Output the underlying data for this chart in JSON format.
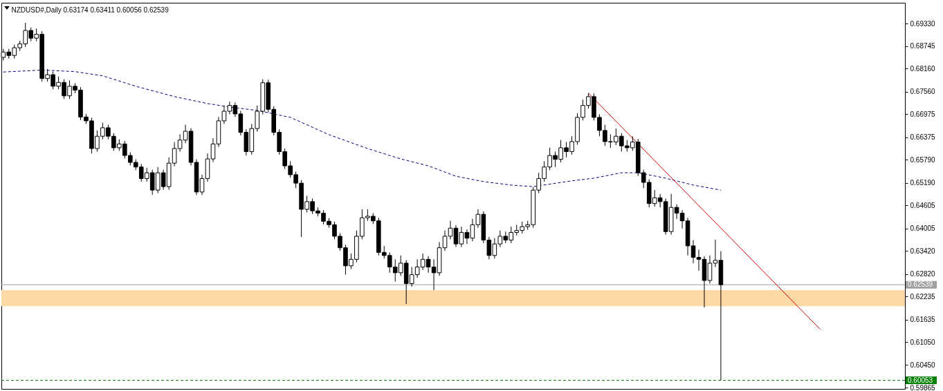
{
  "chart_data": {
    "type": "candlestick",
    "title": "NZDUSD#,Daily  0.63174 0.63411 0.60056 0.62539",
    "categories": [
      null,
      null,
      null,
      null,
      null,
      null,
      null,
      null,
      null,
      null,
      null,
      null,
      null,
      null,
      null,
      null,
      null,
      null,
      null,
      null,
      null,
      null,
      null,
      null,
      null,
      null,
      null,
      null,
      null,
      null,
      null,
      null,
      null,
      null,
      null,
      null,
      null,
      null,
      null,
      null,
      null,
      null,
      null,
      null,
      null,
      null,
      null,
      null,
      null,
      null,
      null,
      null,
      null,
      null,
      null,
      null,
      null,
      null,
      null,
      null,
      null,
      null,
      null,
      null,
      null,
      null,
      null,
      null,
      null,
      null,
      null,
      null,
      null,
      null,
      null,
      null,
      null,
      null,
      null,
      null,
      null,
      null,
      null,
      null,
      null,
      null,
      null,
      null,
      null,
      null,
      null,
      null,
      null,
      null,
      null,
      null,
      null,
      null,
      null,
      null,
      null,
      null,
      null,
      null,
      null,
      null,
      null,
      null,
      null,
      null,
      null,
      null,
      null,
      null,
      null,
      null,
      null,
      null,
      null,
      null,
      null,
      null,
      null,
      null,
      null,
      null,
      null,
      null,
      null,
      null,
      null,
      null,
      null,
      null,
      null,
      null,
      null,
      null,
      null,
      null,
      null,
      null,
      null,
      null,
      null,
      null,
      null,
      null,
      null,
      null,
      null,
      null,
      null,
      null,
      null,
      null,
      null,
      null,
      null,
      null,
      null,
      null,
      null,
      null
    ],
    "ohlc": [
      [
        0.6845,
        0.6867,
        0.6837,
        0.6859
      ],
      [
        0.6859,
        0.6867,
        0.6842,
        0.685
      ],
      [
        0.685,
        0.6878,
        0.6842,
        0.687
      ],
      [
        0.687,
        0.6888,
        0.6862,
        0.688
      ],
      [
        0.688,
        0.6935,
        0.6872,
        0.6915
      ],
      [
        0.6915,
        0.6923,
        0.6887,
        0.6895
      ],
      [
        0.6895,
        0.692,
        0.6887,
        0.6905
      ],
      [
        0.6905,
        0.6913,
        0.6782,
        0.679
      ],
      [
        0.679,
        0.6815,
        0.6782,
        0.68
      ],
      [
        0.68,
        0.6808,
        0.6762,
        0.677
      ],
      [
        0.677,
        0.6795,
        0.6762,
        0.678
      ],
      [
        0.678,
        0.6788,
        0.6737,
        0.6745
      ],
      [
        0.6745,
        0.6785,
        0.6737,
        0.677
      ],
      [
        0.677,
        0.6778,
        0.6752,
        0.676
      ],
      [
        0.676,
        0.6768,
        0.6682,
        0.669
      ],
      [
        0.669,
        0.6698,
        0.6672,
        0.668
      ],
      [
        0.668,
        0.6688,
        0.6595,
        0.6608
      ],
      [
        0.6608,
        0.6655,
        0.66,
        0.664
      ],
      [
        0.664,
        0.6675,
        0.6632,
        0.6662
      ],
      [
        0.6662,
        0.667,
        0.6632,
        0.664
      ],
      [
        0.664,
        0.6648,
        0.6602,
        0.661
      ],
      [
        0.661,
        0.6632,
        0.6602,
        0.662
      ],
      [
        0.662,
        0.6628,
        0.6582,
        0.659
      ],
      [
        0.659,
        0.6598,
        0.6564,
        0.6572
      ],
      [
        0.6572,
        0.658,
        0.6552,
        0.656
      ],
      [
        0.656,
        0.6568,
        0.6522,
        0.653
      ],
      [
        0.653,
        0.6558,
        0.6522,
        0.6545
      ],
      [
        0.6545,
        0.6553,
        0.6488,
        0.65
      ],
      [
        0.65,
        0.656,
        0.6492,
        0.6545
      ],
      [
        0.6545,
        0.6553,
        0.6501,
        0.6509
      ],
      [
        0.6509,
        0.6585,
        0.6501,
        0.657
      ],
      [
        0.657,
        0.6625,
        0.6562,
        0.6608
      ],
      [
        0.6608,
        0.6645,
        0.66,
        0.663
      ],
      [
        0.663,
        0.667,
        0.6622,
        0.6653
      ],
      [
        0.6653,
        0.6661,
        0.6564,
        0.6572
      ],
      [
        0.6572,
        0.658,
        0.6487,
        0.6495
      ],
      [
        0.6495,
        0.654,
        0.6487,
        0.653
      ],
      [
        0.653,
        0.6595,
        0.6522,
        0.6581
      ],
      [
        0.6581,
        0.6635,
        0.6573,
        0.662
      ],
      [
        0.662,
        0.669,
        0.6612,
        0.668
      ],
      [
        0.668,
        0.672,
        0.6672,
        0.6705
      ],
      [
        0.6705,
        0.673,
        0.6697,
        0.672
      ],
      [
        0.672,
        0.6728,
        0.669,
        0.6698
      ],
      [
        0.6698,
        0.6706,
        0.6642,
        0.665
      ],
      [
        0.665,
        0.6658,
        0.659,
        0.66
      ],
      [
        0.66,
        0.6672,
        0.6592,
        0.666
      ],
      [
        0.666,
        0.672,
        0.6652,
        0.6705
      ],
      [
        0.6705,
        0.6788,
        0.6697,
        0.6779
      ],
      [
        0.6779,
        0.6787,
        0.6702,
        0.671
      ],
      [
        0.671,
        0.6718,
        0.6642,
        0.665
      ],
      [
        0.665,
        0.6658,
        0.6592,
        0.66
      ],
      [
        0.66,
        0.6608,
        0.6555,
        0.6563
      ],
      [
        0.6563,
        0.6575,
        0.6532,
        0.654
      ],
      [
        0.654,
        0.6548,
        0.6505,
        0.6518
      ],
      [
        0.6518,
        0.6526,
        0.6378,
        0.645
      ],
      [
        0.645,
        0.6485,
        0.6442,
        0.647
      ],
      [
        0.647,
        0.6478,
        0.6438,
        0.6446
      ],
      [
        0.6446,
        0.6455,
        0.6432,
        0.644
      ],
      [
        0.644,
        0.6448,
        0.6411,
        0.6419
      ],
      [
        0.6419,
        0.6427,
        0.6402,
        0.641
      ],
      [
        0.641,
        0.6418,
        0.6372,
        0.638
      ],
      [
        0.638,
        0.6388,
        0.6342,
        0.635
      ],
      [
        0.635,
        0.6358,
        0.628,
        0.6303
      ],
      [
        0.6303,
        0.6335,
        0.6295,
        0.632
      ],
      [
        0.632,
        0.6395,
        0.6312,
        0.638
      ],
      [
        0.638,
        0.645,
        0.6372,
        0.6428
      ],
      [
        0.6428,
        0.645,
        0.642,
        0.6432
      ],
      [
        0.6432,
        0.644,
        0.6412,
        0.642
      ],
      [
        0.642,
        0.6428,
        0.633,
        0.6338
      ],
      [
        0.6338,
        0.6355,
        0.6322,
        0.633
      ],
      [
        0.633,
        0.6338,
        0.6285,
        0.63
      ],
      [
        0.63,
        0.632,
        0.6262,
        0.6285
      ],
      [
        0.6285,
        0.633,
        0.6277,
        0.631
      ],
      [
        0.631,
        0.6318,
        0.6204,
        0.6257
      ],
      [
        0.6257,
        0.63,
        0.6249,
        0.628
      ],
      [
        0.628,
        0.632,
        0.6272,
        0.63
      ],
      [
        0.63,
        0.6335,
        0.6292,
        0.632
      ],
      [
        0.632,
        0.6328,
        0.6285,
        0.63
      ],
      [
        0.63,
        0.632,
        0.624,
        0.6285
      ],
      [
        0.6285,
        0.6365,
        0.6277,
        0.635
      ],
      [
        0.635,
        0.6395,
        0.6342,
        0.638
      ],
      [
        0.638,
        0.642,
        0.6372,
        0.6401
      ],
      [
        0.6401,
        0.6409,
        0.6352,
        0.636
      ],
      [
        0.636,
        0.6405,
        0.6352,
        0.639
      ],
      [
        0.639,
        0.6398,
        0.636,
        0.6375
      ],
      [
        0.6375,
        0.6425,
        0.6367,
        0.641
      ],
      [
        0.641,
        0.645,
        0.6402,
        0.6437
      ],
      [
        0.6437,
        0.6445,
        0.6362,
        0.637
      ],
      [
        0.637,
        0.6378,
        0.632,
        0.633
      ],
      [
        0.633,
        0.6375,
        0.6322,
        0.636
      ],
      [
        0.636,
        0.6395,
        0.6352,
        0.638
      ],
      [
        0.638,
        0.6392,
        0.6362,
        0.637
      ],
      [
        0.637,
        0.6405,
        0.6362,
        0.639
      ],
      [
        0.639,
        0.641,
        0.6382,
        0.6395
      ],
      [
        0.6395,
        0.6418,
        0.6387,
        0.6405
      ],
      [
        0.6405,
        0.642,
        0.6397,
        0.641
      ],
      [
        0.641,
        0.6508,
        0.6402,
        0.65
      ],
      [
        0.65,
        0.6545,
        0.6492,
        0.653
      ],
      [
        0.653,
        0.6575,
        0.6522,
        0.656
      ],
      [
        0.656,
        0.661,
        0.6552,
        0.659
      ],
      [
        0.659,
        0.66,
        0.656,
        0.658
      ],
      [
        0.658,
        0.663,
        0.6572,
        0.661
      ],
      [
        0.661,
        0.6625,
        0.6585,
        0.66
      ],
      [
        0.66,
        0.664,
        0.6592,
        0.6626
      ],
      [
        0.6626,
        0.67,
        0.6618,
        0.6689
      ],
      [
        0.6689,
        0.6735,
        0.6681,
        0.672
      ],
      [
        0.672,
        0.6752,
        0.6712,
        0.6743
      ],
      [
        0.6743,
        0.6751,
        0.6681,
        0.6689
      ],
      [
        0.6689,
        0.6697,
        0.664,
        0.6655
      ],
      [
        0.6655,
        0.667,
        0.6615,
        0.6626
      ],
      [
        0.6626,
        0.6645,
        0.661,
        0.6625
      ],
      [
        0.6625,
        0.666,
        0.6617,
        0.664
      ],
      [
        0.664,
        0.6648,
        0.66,
        0.6615
      ],
      [
        0.6615,
        0.663,
        0.66,
        0.661
      ],
      [
        0.661,
        0.664,
        0.6602,
        0.6625
      ],
      [
        0.6625,
        0.6633,
        0.6537,
        0.6545
      ],
      [
        0.6545,
        0.6553,
        0.6505,
        0.652
      ],
      [
        0.652,
        0.6528,
        0.6455,
        0.6465
      ],
      [
        0.6465,
        0.65,
        0.6457,
        0.648
      ],
      [
        0.648,
        0.649,
        0.6455,
        0.647
      ],
      [
        0.647,
        0.6478,
        0.6384,
        0.6392
      ],
      [
        0.6392,
        0.649,
        0.6384,
        0.6455
      ],
      [
        0.6455,
        0.6463,
        0.6425,
        0.644
      ],
      [
        0.644,
        0.6448,
        0.64,
        0.642
      ],
      [
        0.642,
        0.6428,
        0.633,
        0.6355
      ],
      [
        0.6355,
        0.637,
        0.631,
        0.6325
      ],
      [
        0.6325,
        0.6345,
        0.629,
        0.632
      ],
      [
        0.632,
        0.6328,
        0.6195,
        0.6265
      ],
      [
        0.6265,
        0.633,
        0.6257,
        0.631
      ],
      [
        0.631,
        0.6371,
        0.63,
        0.63174
      ],
      [
        0.63174,
        0.63411,
        0.60056,
        0.62539
      ],
      null,
      null,
      null,
      null,
      null,
      null,
      null,
      null,
      null,
      null,
      null,
      null,
      null,
      null,
      null,
      null,
      null,
      null,
      null,
      null,
      null,
      null,
      null,
      null,
      null,
      null,
      null,
      null,
      null,
      null,
      null,
      null,
      null
    ],
    "series": [
      {
        "type": "line",
        "color": "#000080",
        "line_style": "dashed",
        "values": [
          0.6807,
          null,
          null,
          null,
          null,
          null,
          null,
          0.6812,
          null,
          null,
          null,
          null,
          null,
          0.6808,
          null,
          null,
          null,
          null,
          0.6797,
          null,
          null,
          null,
          null,
          null,
          0.677,
          null,
          null,
          null,
          null,
          null,
          null,
          0.6743,
          null,
          null,
          null,
          null,
          null,
          0.6725,
          null,
          null,
          null,
          0.6716,
          null,
          null,
          null,
          null,
          0.6707,
          null,
          null,
          null,
          null,
          null,
          0.6689,
          null,
          null,
          null,
          null,
          null,
          null,
          0.6644,
          null,
          null,
          null,
          null,
          null,
          null,
          0.6608,
          null,
          null,
          null,
          null,
          null,
          0.6581,
          null,
          null,
          null,
          null,
          0.6563,
          null,
          null,
          null,
          null,
          0.6536,
          null,
          null,
          null,
          null,
          0.6522,
          null,
          null,
          null,
          null,
          0.6513,
          null,
          null,
          null,
          0.6509,
          null,
          null,
          null,
          null,
          null,
          0.6522,
          null,
          null,
          null,
          null,
          0.6531,
          null,
          null,
          null,
          null,
          0.6545,
          null,
          null,
          0.6545,
          null,
          null,
          null,
          null,
          0.6531,
          null,
          null,
          null,
          null,
          0.6513,
          null,
          null,
          null,
          null,
          0.65,
          null,
          null,
          null,
          null,
          null,
          null,
          null,
          null,
          null,
          null,
          null,
          null,
          null,
          null,
          null,
          null,
          null,
          null,
          null,
          null,
          null,
          null,
          null,
          null,
          null,
          null,
          null,
          null,
          null,
          null,
          null,
          null,
          null
        ]
      },
      {
        "type": "line",
        "color": "#cc0000",
        "values": [
          null,
          null,
          null,
          null,
          null,
          null,
          null,
          null,
          null,
          null,
          null,
          null,
          null,
          null,
          null,
          null,
          null,
          null,
          null,
          null,
          null,
          null,
          null,
          null,
          null,
          null,
          null,
          null,
          null,
          null,
          null,
          null,
          null,
          null,
          null,
          null,
          null,
          null,
          null,
          null,
          null,
          null,
          null,
          null,
          null,
          null,
          null,
          null,
          null,
          null,
          null,
          null,
          null,
          null,
          null,
          null,
          null,
          null,
          null,
          null,
          null,
          null,
          null,
          null,
          null,
          null,
          null,
          null,
          null,
          null,
          null,
          null,
          null,
          null,
          null,
          null,
          null,
          null,
          null,
          null,
          null,
          null,
          null,
          null,
          null,
          null,
          null,
          null,
          null,
          null,
          null,
          null,
          null,
          null,
          null,
          null,
          null,
          null,
          null,
          null,
          null,
          null,
          null,
          null,
          null,
          null,
          0.6752,
          null,
          null,
          null,
          null,
          null,
          null,
          null,
          null,
          null,
          null,
          null,
          null,
          null,
          null,
          null,
          null,
          null,
          null,
          null,
          null,
          null,
          null,
          null,
          null,
          null,
          null,
          null,
          null,
          null,
          null,
          null,
          null,
          null,
          null,
          null,
          null,
          null,
          null,
          null,
          null,
          null,
          0.6138,
          null,
          null,
          null,
          null,
          null,
          null,
          null,
          null,
          null,
          null,
          null,
          null,
          null,
          null,
          null
        ]
      }
    ],
    "ylim": [
      0.5983,
      0.6987
    ],
    "yticks": [
      {
        "value": 0.6933,
        "label": "0.69330"
      },
      {
        "value": 0.68745,
        "label": "0.68745"
      },
      {
        "value": 0.6816,
        "label": "0.68160"
      },
      {
        "value": 0.6756,
        "label": "0.67560"
      },
      {
        "value": 0.66975,
        "label": "0.66975"
      },
      {
        "value": 0.66375,
        "label": "0.66375"
      },
      {
        "value": 0.6579,
        "label": "0.65790"
      },
      {
        "value": 0.6519,
        "label": "0.65190"
      },
      {
        "value": 0.64605,
        "label": "0.64605"
      },
      {
        "value": 0.64005,
        "label": "0.64005"
      },
      {
        "value": 0.6342,
        "label": "0.63420"
      },
      {
        "value": 0.6282,
        "label": "0.62820"
      },
      {
        "value": 0.62235,
        "label": "0.62235"
      },
      {
        "value": 0.61635,
        "label": "0.61635"
      },
      {
        "value": 0.6105,
        "label": "0.61050"
      },
      {
        "value": 0.6045,
        "label": "0.60450"
      },
      {
        "value": 0.59865,
        "label": "0.59865"
      }
    ],
    "ref_lines": [
      {
        "axis": "y",
        "value": 0.62539,
        "label": "0.62539",
        "color": "#a0a0a0"
      },
      {
        "axis": "y",
        "value": 0.60053,
        "label": "0.60053",
        "color": "#008000",
        "line_style": "dashed"
      }
    ],
    "bands": [
      {
        "axis": "y",
        "from": 0.6198,
        "to": 0.624,
        "color": "#fdd9a6"
      }
    ],
    "tick_labels": "y"
  }
}
